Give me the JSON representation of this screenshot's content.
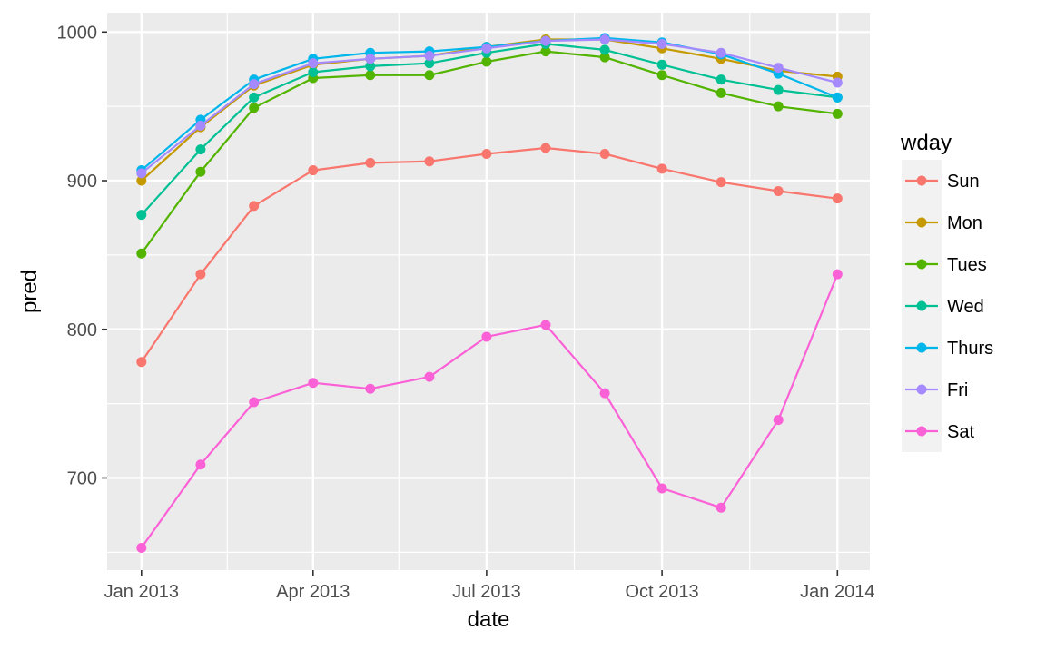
{
  "chart_data": {
    "type": "line",
    "title": "",
    "xlabel": "date",
    "ylabel": "pred",
    "x": [
      "2013-01-01",
      "2013-02-01",
      "2013-03-01",
      "2013-04-01",
      "2013-05-01",
      "2013-06-01",
      "2013-07-01",
      "2013-08-01",
      "2013-09-01",
      "2013-10-01",
      "2013-11-01",
      "2013-12-01",
      "2014-01-01"
    ],
    "xlim": [
      "2012-12-14",
      "2014-01-18"
    ],
    "ylim": [
      638,
      1013
    ],
    "x_ticks": [
      {
        "value": "2013-01-01",
        "label": "Jan 2013"
      },
      {
        "value": "2013-04-01",
        "label": "Apr 2013"
      },
      {
        "value": "2013-07-01",
        "label": "Jul 2013"
      },
      {
        "value": "2013-10-01",
        "label": "Oct 2013"
      },
      {
        "value": "2014-01-01",
        "label": "Jan 2014"
      }
    ],
    "x_minor_ticks": [
      "2013-02-15",
      "2013-05-16",
      "2013-08-16",
      "2013-11-16"
    ],
    "y_ticks": [
      700,
      800,
      900,
      1000
    ],
    "y_minor_ticks": [
      650,
      750,
      850,
      950
    ],
    "grid": true,
    "legend": {
      "title": "wday",
      "position": "right"
    },
    "series": [
      {
        "name": "Sun",
        "color": "#F8766D",
        "values": [
          778,
          837,
          883,
          907,
          912,
          913,
          918,
          922,
          918,
          908,
          899,
          893,
          888
        ]
      },
      {
        "name": "Mon",
        "color": "#C49A00",
        "values": [
          900,
          936,
          964,
          978,
          982,
          984,
          990,
          995,
          995,
          989,
          982,
          974,
          970
        ]
      },
      {
        "name": "Tues",
        "color": "#53B400",
        "values": [
          851,
          906,
          949,
          969,
          971,
          971,
          980,
          987,
          983,
          971,
          959,
          950,
          945
        ]
      },
      {
        "name": "Wed",
        "color": "#00C094",
        "values": [
          877,
          921,
          956,
          973,
          977,
          979,
          986,
          992,
          988,
          978,
          968,
          961,
          956
        ]
      },
      {
        "name": "Thurs",
        "color": "#00B6EB",
        "values": [
          907,
          941,
          968,
          982,
          986,
          987,
          990,
          994,
          996,
          993,
          985,
          972,
          956
        ]
      },
      {
        "name": "Fri",
        "color": "#A58AFF",
        "values": [
          905,
          937,
          965,
          979,
          982,
          984,
          989,
          994,
          995,
          992,
          986,
          976,
          966
        ]
      },
      {
        "name": "Sat",
        "color": "#FB61D7",
        "values": [
          653,
          709,
          751,
          764,
          760,
          768,
          795,
          803,
          757,
          693,
          680,
          739,
          837
        ]
      }
    ]
  }
}
